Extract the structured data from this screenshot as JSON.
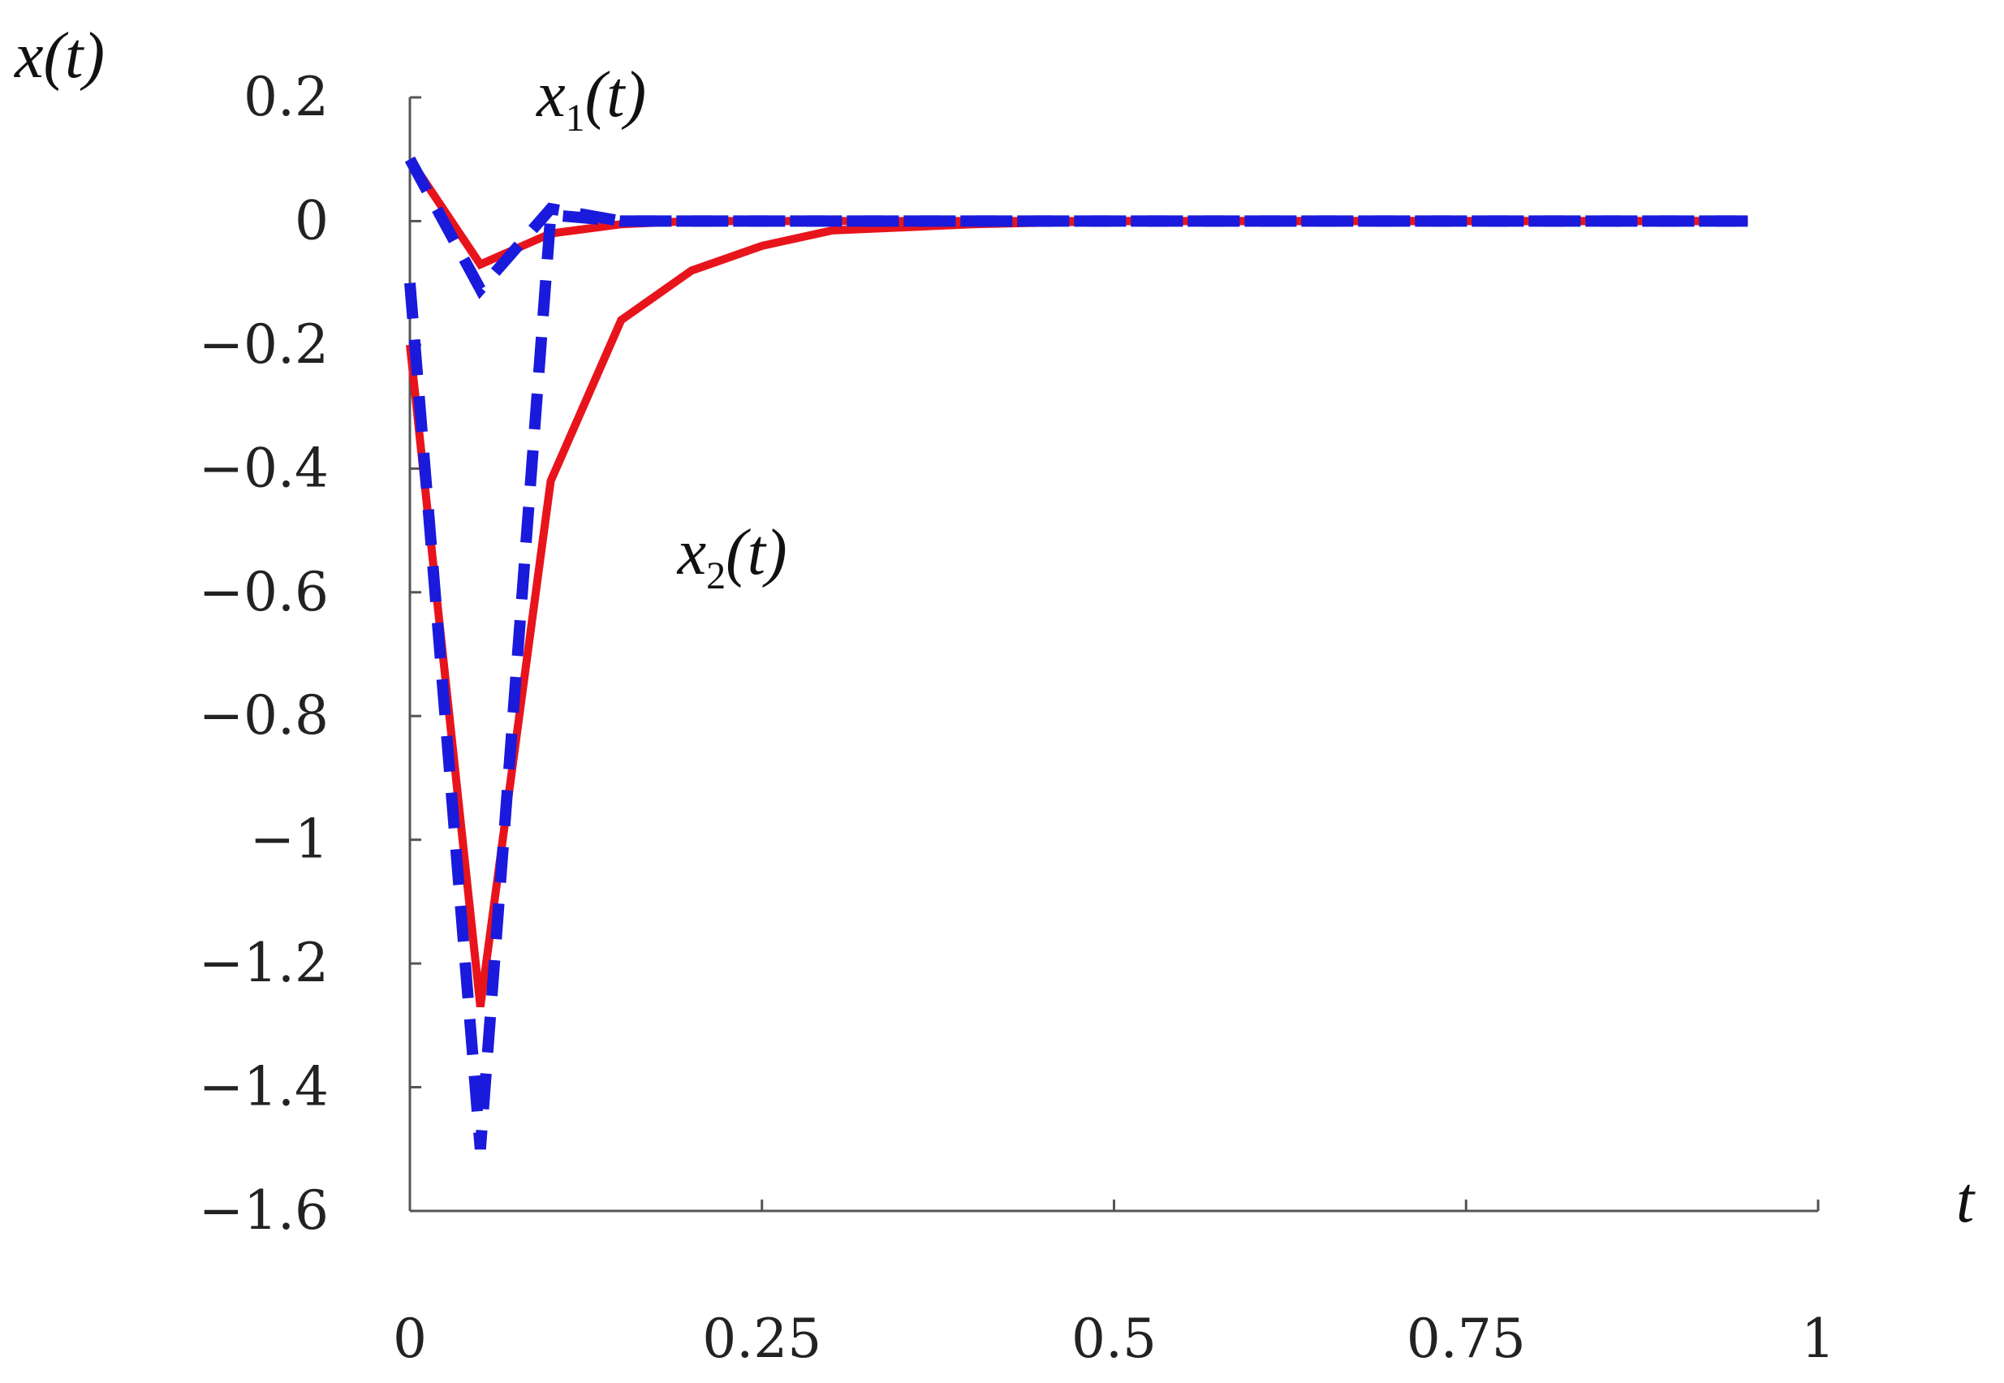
{
  "chart_data": {
    "type": "line",
    "ylabel": "x(t)",
    "xlabel": "t",
    "xlim": [
      0,
      1
    ],
    "ylim": [
      -1.6,
      0.2
    ],
    "x_ticks": [
      0,
      0.25,
      0.5,
      0.75,
      1
    ],
    "x_tick_labels": [
      "0",
      "0.25",
      "0.5",
      "0.75",
      "1"
    ],
    "y_ticks": [
      0.2,
      0,
      -0.2,
      -0.4,
      -0.6,
      -0.8,
      -1,
      -1.2,
      -1.4,
      -1.6
    ],
    "y_tick_labels": [
      "0.2",
      "0",
      "−0.2",
      "−0.4",
      "−0.6",
      "−0.8",
      "−1",
      "−1.2",
      "−1.4",
      "−1.6"
    ],
    "grid": false,
    "annotations": [
      {
        "base": "x",
        "sub": "1",
        "suffix": "(t)",
        "x": 0.09,
        "y": 0.17
      },
      {
        "base": "x",
        "sub": "2",
        "suffix": "(t)",
        "x": 0.19,
        "y": -0.57
      }
    ],
    "series": [
      {
        "id": "x1-solid",
        "color": "#e8141c",
        "style": "solid",
        "x": [
          0,
          0.05,
          0.1,
          0.15,
          0.2,
          0.3,
          0.4,
          0.5,
          0.6,
          0.7,
          0.8,
          0.95
        ],
        "y": [
          0.1,
          -0.07,
          -0.02,
          -0.005,
          0,
          0,
          0,
          0,
          0,
          0,
          0,
          0
        ]
      },
      {
        "id": "x1-dashed",
        "color": "#1a1adc",
        "style": "dashed",
        "x": [
          0,
          0.05,
          0.1,
          0.15,
          0.2,
          0.3,
          0.4,
          0.5,
          0.6,
          0.7,
          0.8,
          0.95
        ],
        "y": [
          0.1,
          -0.11,
          0.02,
          0,
          0,
          0,
          0,
          0,
          0,
          0,
          0,
          0
        ]
      },
      {
        "id": "x2-solid",
        "color": "#e8141c",
        "style": "solid",
        "x": [
          0,
          0.05,
          0.1,
          0.15,
          0.2,
          0.25,
          0.3,
          0.4,
          0.5,
          0.6,
          0.7,
          0.8,
          0.95
        ],
        "y": [
          -0.2,
          -1.27,
          -0.42,
          -0.16,
          -0.08,
          -0.04,
          -0.015,
          -0.005,
          0,
          0,
          0,
          0,
          0
        ]
      },
      {
        "id": "x2-dashed",
        "color": "#1a1adc",
        "style": "dashed",
        "x": [
          0,
          0.05,
          0.1,
          0.15,
          0.2,
          0.3,
          0.4,
          0.5,
          0.6,
          0.7,
          0.8,
          0.95
        ],
        "y": [
          -0.1,
          -1.5,
          0.01,
          0,
          0,
          0,
          0,
          0,
          0,
          0,
          0,
          0
        ]
      }
    ]
  }
}
